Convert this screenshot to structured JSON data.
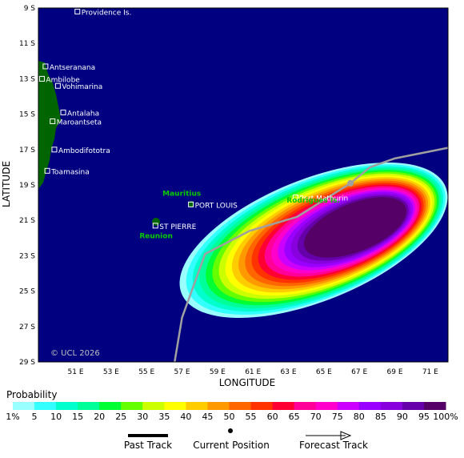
{
  "map": {
    "copyright": "© UCL 2026",
    "x_axis_label": "LONGITUDE",
    "y_axis_label": "LATITUDE",
    "lon_ticks": [
      "51 E",
      "53 E",
      "55 E",
      "57 E",
      "59 E",
      "61 E",
      "63 E",
      "65 E",
      "67 E",
      "69 E",
      "71 E"
    ],
    "lat_ticks": [
      "9 S",
      "11 S",
      "13 S",
      "15 S",
      "17 S",
      "19 S",
      "21 S",
      "23 S",
      "25 S",
      "27 S",
      "29 S"
    ],
    "colors": {
      "ocean": "#000080",
      "land": "#006400",
      "track": "#a0a0a0",
      "place_label": "#ffffff",
      "island_label": "#00cc00"
    },
    "places": [
      {
        "name": "Providence Is.",
        "lon": 51.1,
        "lat": -9.2
      },
      {
        "name": "Antseranana",
        "lon": 49.3,
        "lat": -12.3
      },
      {
        "name": "Ambilobe",
        "lon": 49.1,
        "lat": -13.0
      },
      {
        "name": "Vohimarina",
        "lon": 50.0,
        "lat": -13.4
      },
      {
        "name": "Antalaha",
        "lon": 50.3,
        "lat": -14.9
      },
      {
        "name": "Maroantseta",
        "lon": 49.7,
        "lat": -15.4
      },
      {
        "name": "Ambodifototra",
        "lon": 49.8,
        "lat": -17.0
      },
      {
        "name": "Toamasina",
        "lon": 49.4,
        "lat": -18.2
      },
      {
        "name": "PORT LOUIS",
        "lon": 57.5,
        "lat": -20.1
      },
      {
        "name": "ST PIERRE",
        "lon": 55.5,
        "lat": -21.3
      },
      {
        "name": "Port Mathurin",
        "lon": 63.4,
        "lat": -19.7
      }
    ],
    "islands": [
      {
        "name": "Mauritius",
        "lon": 55.9,
        "lat": -19.6
      },
      {
        "name": "Reunion",
        "lon": 54.6,
        "lat": -22.0
      },
      {
        "name": "Rodrigues Is.",
        "lon": 62.9,
        "lat": -20.0
      }
    ],
    "probability_swath": {
      "description_levels_percent": [
        1,
        5,
        10,
        15,
        20,
        25,
        30,
        35,
        40,
        45,
        50,
        55,
        60,
        65,
        70,
        75,
        80,
        85,
        90,
        95
      ]
    },
    "track": {
      "past": [
        [
          56.5,
          -29.5
        ],
        [
          57.0,
          -26.5
        ],
        [
          58.3,
          -22.9
        ],
        [
          60.8,
          -21.6
        ],
        [
          63.5,
          -20.8
        ],
        [
          66.5,
          -18.9
        ]
      ],
      "current": [
        66.5,
        -18.9
      ],
      "forecast": [
        [
          66.5,
          -18.9
        ],
        [
          67.6,
          -18.0
        ],
        [
          69.0,
          -17.5
        ],
        [
          70.5,
          -17.2
        ],
        [
          72.0,
          -16.9
        ]
      ]
    }
  },
  "legend": {
    "title": "Probability",
    "labels": [
      "1%",
      "5",
      "10",
      "15",
      "20",
      "25",
      "30",
      "35",
      "40",
      "45",
      "50",
      "55",
      "60",
      "65",
      "70",
      "75",
      "80",
      "85",
      "90",
      "95",
      "100%"
    ],
    "colors": [
      "#99ffff",
      "#33ffff",
      "#00ffcc",
      "#00ff99",
      "#00ff33",
      "#66ff00",
      "#ccff00",
      "#ffff00",
      "#ffcc00",
      "#ff9900",
      "#ff6600",
      "#ff3300",
      "#ff0033",
      "#ff0099",
      "#ff00cc",
      "#cc00ff",
      "#9900ff",
      "#8800dd",
      "#6600aa",
      "#550066"
    ]
  },
  "track_legend": {
    "past_label": "Past Track",
    "current_label": "Current Position",
    "forecast_label": "Forecast Track"
  }
}
